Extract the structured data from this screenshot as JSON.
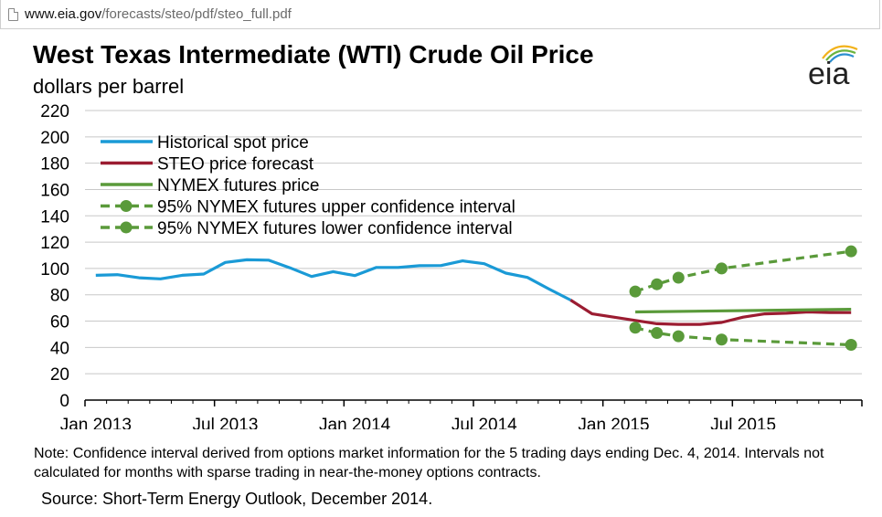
{
  "browser": {
    "url_domain": "www.eia.gov",
    "url_path": "/forecasts/steo/pdf/steo_full.pdf"
  },
  "logo_text": "eia",
  "colors": {
    "historical": "#1a9ad6",
    "steo": "#9b1c31",
    "nymex": "#5a9a3a",
    "ci": "#5a9a3a",
    "grid": "#c8c8c8"
  },
  "chart_data": {
    "type": "line",
    "title": "West Texas Intermediate (WTI) Crude Oil Price",
    "subtitle": "dollars per barrel",
    "ylim": [
      0,
      220
    ],
    "yticks": [
      0,
      20,
      40,
      60,
      80,
      100,
      120,
      140,
      160,
      180,
      200,
      220
    ],
    "xlim": [
      "2013-01",
      "2015-12"
    ],
    "xticks": [
      {
        "label": "Jan 2013",
        "x": "2013-01"
      },
      {
        "label": "Jul 2013",
        "x": "2013-07"
      },
      {
        "label": "Jan 2014",
        "x": "2014-01"
      },
      {
        "label": "Jul 2014",
        "x": "2014-07"
      },
      {
        "label": "Jan 2015",
        "x": "2015-01"
      },
      {
        "label": "Jul 2015",
        "x": "2015-07"
      }
    ],
    "grid": "horizontal",
    "legend_position": "top-left",
    "series": [
      {
        "name": "Historical spot price",
        "style": "solid",
        "points": [
          [
            "2013-01",
            94.8
          ],
          [
            "2013-02",
            95.3
          ],
          [
            "2013-03",
            92.9
          ],
          [
            "2013-04",
            92.1
          ],
          [
            "2013-05",
            94.8
          ],
          [
            "2013-06",
            95.8
          ],
          [
            "2013-07",
            104.6
          ],
          [
            "2013-08",
            106.6
          ],
          [
            "2013-09",
            106.3
          ],
          [
            "2013-10",
            100.5
          ],
          [
            "2013-11",
            93.9
          ],
          [
            "2013-12",
            97.6
          ],
          [
            "2014-01",
            94.6
          ],
          [
            "2014-02",
            100.8
          ],
          [
            "2014-03",
            100.8
          ],
          [
            "2014-04",
            102.1
          ],
          [
            "2014-05",
            102.2
          ],
          [
            "2014-06",
            105.8
          ],
          [
            "2014-07",
            103.6
          ],
          [
            "2014-08",
            96.5
          ],
          [
            "2014-09",
            93.2
          ],
          [
            "2014-10",
            84.4
          ],
          [
            "2014-11",
            76
          ]
        ]
      },
      {
        "name": "STEO price forecast",
        "style": "solid",
        "points": [
          [
            "2014-11",
            76
          ],
          [
            "2014-12",
            65.5
          ],
          [
            "2015-01",
            63
          ],
          [
            "2015-02",
            60.5
          ],
          [
            "2015-03",
            58
          ],
          [
            "2015-04",
            57.5
          ],
          [
            "2015-05",
            57.5
          ],
          [
            "2015-06",
            59
          ],
          [
            "2015-07",
            63
          ],
          [
            "2015-08",
            65.5
          ],
          [
            "2015-09",
            66
          ],
          [
            "2015-10",
            67
          ],
          [
            "2015-11",
            66.5
          ],
          [
            "2015-12",
            66.5
          ]
        ]
      },
      {
        "name": "NYMEX futures price",
        "style": "solid",
        "points": [
          [
            "2015-02",
            67
          ],
          [
            "2015-12",
            69
          ]
        ]
      },
      {
        "name": "95% NYMEX futures upper confidence interval",
        "style": "dashed-markers",
        "points": [
          [
            "2015-02",
            82.5
          ],
          [
            "2015-03",
            88
          ],
          [
            "2015-04",
            93
          ],
          [
            "2015-06",
            100
          ],
          [
            "2015-12",
            113
          ]
        ]
      },
      {
        "name": "95% NYMEX futures lower confidence interval",
        "style": "dashed-markers",
        "points": [
          [
            "2015-02",
            55
          ],
          [
            "2015-03",
            51
          ],
          [
            "2015-04",
            48.5
          ],
          [
            "2015-06",
            46
          ],
          [
            "2015-12",
            42
          ]
        ]
      }
    ]
  },
  "note_text": "Note: Confidence interval derived from options market information for the 5 trading days ending Dec. 4, 2014. Intervals not calculated for months with sparse trading in near-the-money options contracts.",
  "source_text": "Source: Short-Term Energy Outlook, December 2014."
}
